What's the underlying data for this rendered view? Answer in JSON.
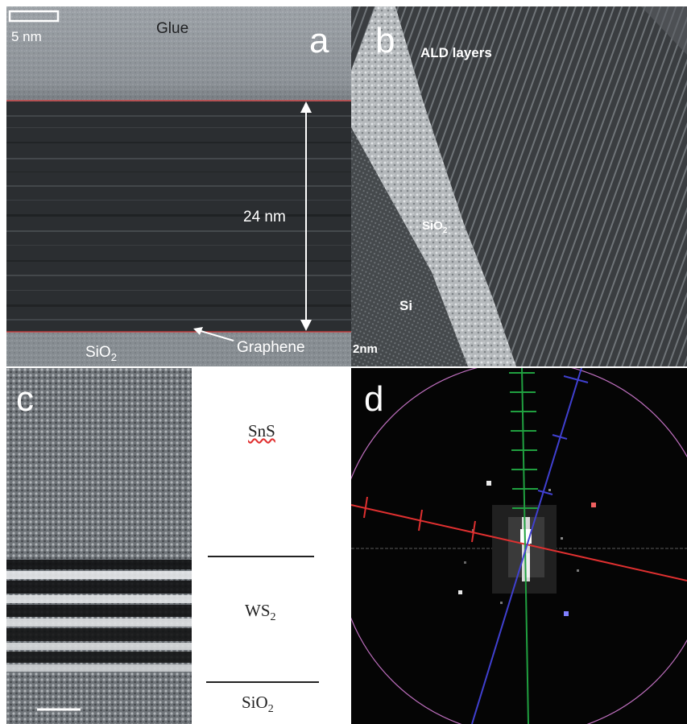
{
  "panels": {
    "a": {
      "letter": "a",
      "scale_bar": "5 nm",
      "glue": "Glue",
      "thickness": "24 nm",
      "substrate": "SiO",
      "substrate_sub": "2",
      "graphene": "Graphene"
    },
    "b": {
      "letter": "b",
      "ald": "ALD layers",
      "sio2": "SiO",
      "sio2_sub": "2",
      "si": "Si",
      "scale": "2nm"
    },
    "c": {
      "letter": "c",
      "sns": "SnS",
      "ws2": "WS",
      "ws2_sub": "2",
      "sio2": "SiO",
      "sio2_sub": "2"
    },
    "d": {
      "letter": "d"
    }
  },
  "colors": {
    "interface_line": "#d83a3a",
    "fft_red": "#e03030",
    "fft_green": "#20a040",
    "fft_blue": "#4040d0",
    "fft_circle": "#c070c0"
  }
}
